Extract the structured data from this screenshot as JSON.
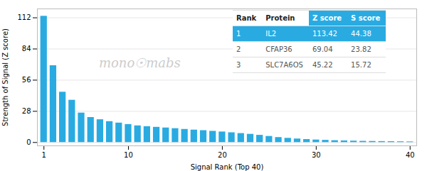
{
  "chart_data": {
    "type": "bar",
    "x": [
      1,
      2,
      3,
      4,
      5,
      6,
      7,
      8,
      9,
      10,
      11,
      12,
      13,
      14,
      15,
      16,
      17,
      18,
      19,
      20,
      21,
      22,
      23,
      24,
      25,
      26,
      27,
      28,
      29,
      30,
      31,
      32,
      33,
      34,
      35,
      36,
      37,
      38,
      39,
      40
    ],
    "values": [
      113.42,
      69.04,
      45.22,
      38.0,
      26.5,
      22.5,
      20.5,
      18.8,
      17.5,
      16.2,
      15.0,
      14.3,
      13.7,
      13.1,
      12.5,
      11.8,
      11.2,
      10.7,
      10.1,
      9.5,
      8.8,
      8.1,
      7.4,
      6.5,
      5.5,
      4.5,
      3.8,
      3.2,
      2.7,
      2.3,
      2.0,
      1.7,
      1.5,
      1.3,
      1.1,
      1.0,
      0.9,
      0.8,
      0.7,
      0.6
    ],
    "color": "#29ABE2",
    "xlabel": "Signal Rank (Top 40)",
    "ylabel": "Strength of Signal (Z score)",
    "xlim": [
      0.3,
      40.7
    ],
    "xticks": [
      1,
      10,
      20,
      30,
      40
    ],
    "ylim": [
      -3,
      120
    ],
    "yticks": [
      0,
      28,
      56,
      84,
      112
    ],
    "grid": true,
    "annotations": [
      "mono☉mabs"
    ],
    "table": {
      "columns": [
        "Rank",
        "Protein",
        "Z score",
        "S score"
      ],
      "rows": [
        [
          "1",
          "IL2",
          "113.42",
          "44.38"
        ],
        [
          "2",
          "CFAP36",
          "69.04",
          "23.82"
        ],
        [
          "3",
          "SLC7A6OS",
          "45.22",
          "15.72"
        ]
      ],
      "color": "#29ABE2"
    }
  }
}
